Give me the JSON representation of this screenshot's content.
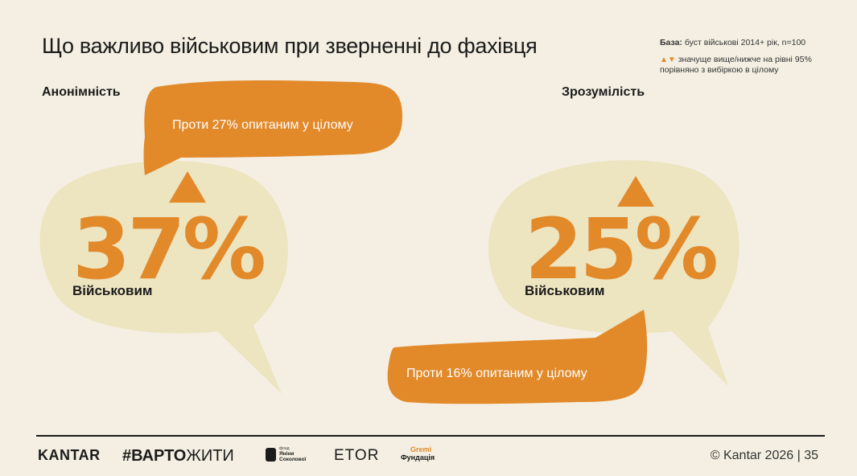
{
  "title": "Що важливо військовим при зверненні до фахівця",
  "base": {
    "label": "База:",
    "text": " буст військові 2014+ рік, n=100"
  },
  "legend": {
    "markers": "▲▼",
    "text": " значуще вище/нижче на рівні 95% порівняно з вибіркою в цілому"
  },
  "left": {
    "heading": "Анонімність",
    "value": "37%",
    "sublabel": "Військовим",
    "comparison": "Проти 27% опитаним у цілому",
    "direction": "up"
  },
  "right": {
    "heading": "Зрозумілість",
    "value": "25%",
    "sublabel": "Військовим",
    "comparison": "Проти 16% опитаним у цілому",
    "direction": "up"
  },
  "footer": {
    "kantar": "KANTAR",
    "varto_hash": "#",
    "varto_bold": "ВАРТО",
    "varto_rest": "ЖИТИ",
    "yanina_top": "фонд",
    "yanina_1": "Яніни",
    "yanina_2": "Соколової",
    "etor": "ETOR",
    "gremi_1": "Gremi",
    "gremi_2": "Фундація",
    "copyright": "© Kantar 2026 | 35"
  },
  "colors": {
    "accent": "#e2892a",
    "cream_bubble": "#ede4c0",
    "background": "#f4efe2"
  }
}
